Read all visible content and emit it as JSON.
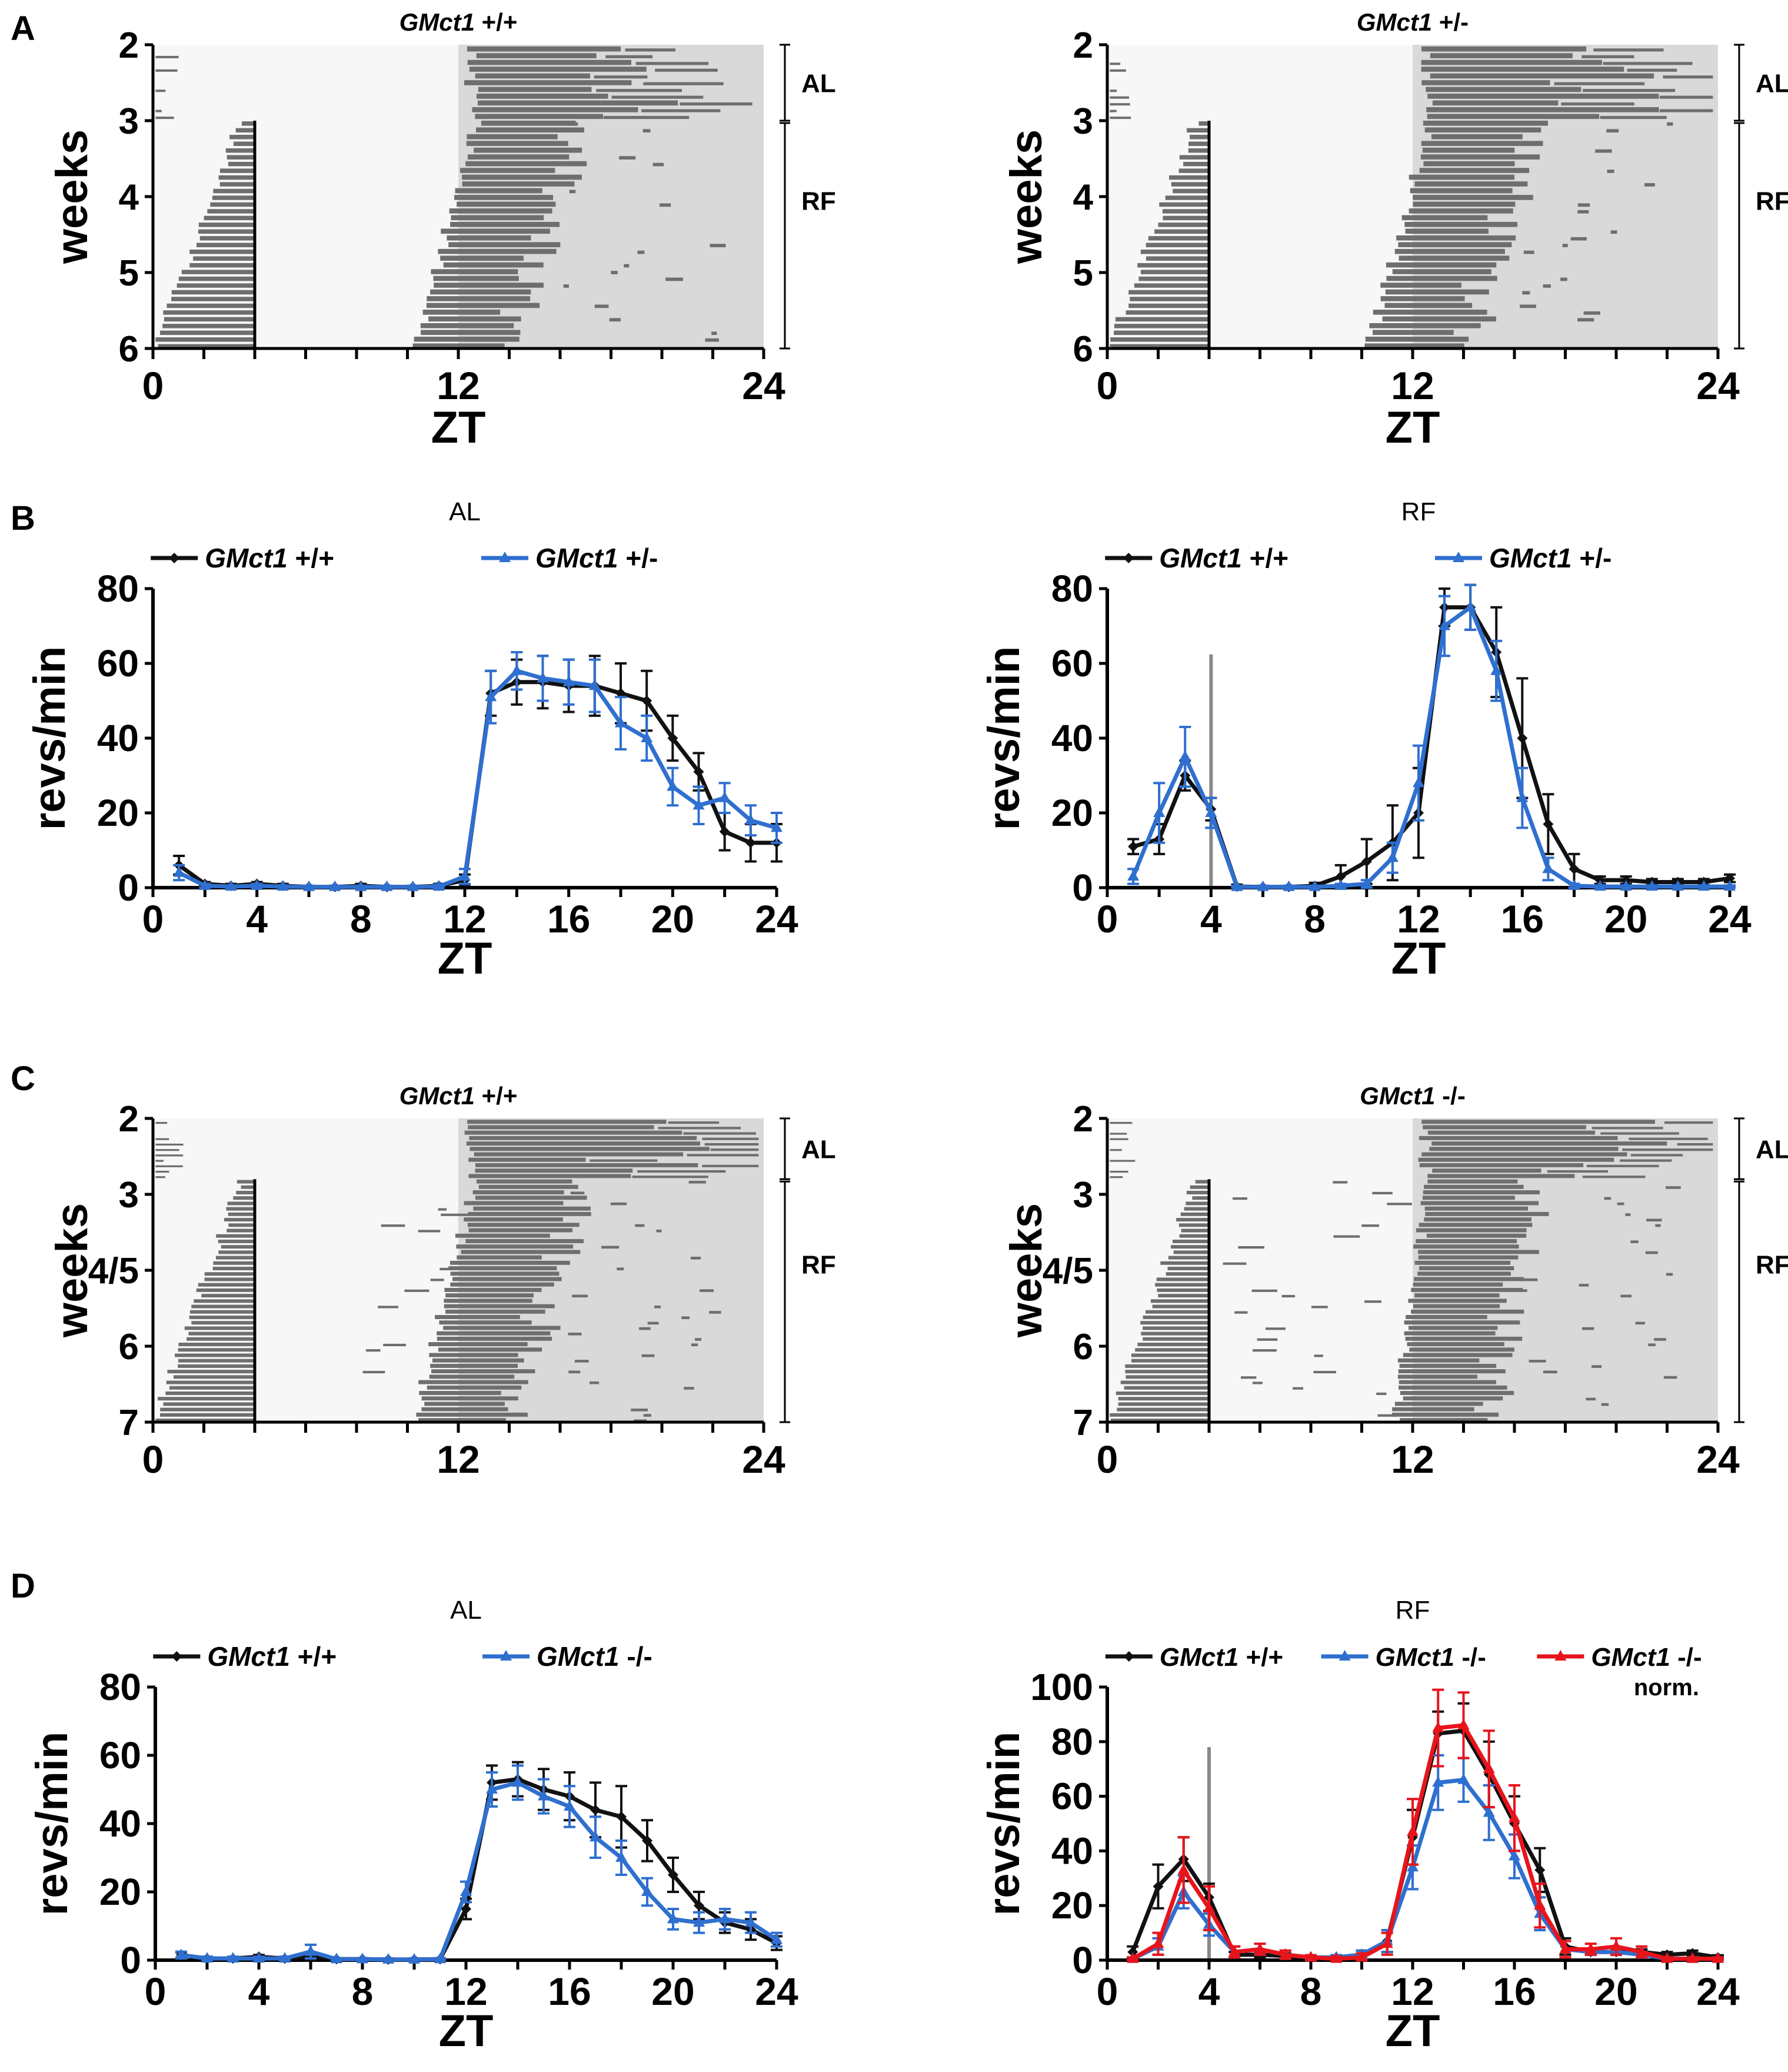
{
  "figure": {
    "panel_letters": [
      "A",
      "B",
      "C",
      "D"
    ]
  },
  "colors": {
    "wt": "#111111",
    "het": "#2f6fcf",
    "ko": "#2f6fcf",
    "norm": "#e8141c",
    "dark_phase": "#d9d9d9",
    "light_phase": "#f7f7f7",
    "activity": "#6e6e6e",
    "feeding_line": "#888888"
  },
  "chart_data": [
    {
      "id": "A-left",
      "panel": "A",
      "type": "actogram",
      "title": "GMct1 +/+",
      "xlabel": "ZT",
      "ylabel": "weeks",
      "xlim": [
        0,
        24
      ],
      "xticks": [
        "0",
        "12",
        "24"
      ],
      "yticks": [
        "2",
        "3",
        "4",
        "5",
        "6"
      ],
      "ylim": [
        2,
        6
      ],
      "phases": [
        {
          "label": "AL",
          "from": 2,
          "to": 3
        },
        {
          "label": "RF",
          "from": 3,
          "to": 6
        }
      ],
      "restricted_feeding_window_zt": [
        0,
        4
      ],
      "dark_phase_zt": [
        12,
        24
      ]
    },
    {
      "id": "A-right",
      "panel": "A",
      "type": "actogram",
      "title": "GMct1 +/-",
      "xlabel": "ZT",
      "ylabel": "weeks",
      "xlim": [
        0,
        24
      ],
      "xticks": [
        "0",
        "12",
        "24"
      ],
      "yticks": [
        "2",
        "3",
        "4",
        "5",
        "6"
      ],
      "ylim": [
        2,
        6
      ],
      "phases": [
        {
          "label": "AL",
          "from": 2,
          "to": 3
        },
        {
          "label": "RF",
          "from": 3,
          "to": 6
        }
      ],
      "restricted_feeding_window_zt": [
        0,
        4
      ],
      "dark_phase_zt": [
        12,
        24
      ]
    },
    {
      "id": "B-left",
      "panel": "B",
      "type": "line",
      "title": "AL",
      "xlabel": "ZT",
      "ylabel": "revs/min",
      "xlim": [
        0,
        24
      ],
      "ylim": [
        0,
        80
      ],
      "xticks": [
        "0",
        "4",
        "8",
        "12",
        "16",
        "20",
        "24"
      ],
      "yticks": [
        "0",
        "20",
        "40",
        "60",
        "80"
      ],
      "legend": "top-center",
      "x": [
        1,
        2,
        3,
        4,
        5,
        6,
        7,
        8,
        9,
        10,
        11,
        12,
        13,
        14,
        15,
        16,
        17,
        18,
        19,
        20,
        21,
        22,
        23,
        24
      ],
      "series": [
        {
          "name": "GMct1 +/+",
          "genotype": "GMct1",
          "suffix": " +/+",
          "marker": "diamond",
          "values": [
            6,
            1,
            0.5,
            1,
            0.5,
            0.2,
            0.2,
            0.5,
            0.2,
            0.2,
            0.5,
            2,
            52,
            55,
            55,
            54,
            54,
            52,
            50,
            40,
            31,
            15,
            12,
            12
          ],
          "errors": [
            2.5,
            0.5,
            0.5,
            0.5,
            0.5,
            0.3,
            0.3,
            0.5,
            0.3,
            0.3,
            0.5,
            1.5,
            6,
            6,
            7,
            7,
            8,
            8,
            8,
            6,
            5,
            5,
            5,
            5
          ]
        },
        {
          "name": "GMct1 +/-",
          "genotype": "GMct1",
          "suffix": " +/-",
          "marker": "triangle",
          "values": [
            4,
            0.5,
            0.3,
            0.5,
            0.3,
            0.2,
            0.2,
            0.2,
            0.2,
            0.2,
            0.3,
            3,
            51,
            58,
            56,
            55,
            54,
            44,
            40,
            27,
            22,
            24,
            18,
            16
          ],
          "errors": [
            2,
            0.5,
            0.3,
            0.5,
            0.3,
            0.3,
            0.3,
            0.3,
            0.3,
            0.3,
            0.5,
            2,
            7,
            5,
            6,
            6,
            7,
            7,
            6,
            5,
            5,
            4,
            4,
            4
          ]
        }
      ]
    },
    {
      "id": "B-right",
      "panel": "B",
      "type": "line",
      "title": "RF",
      "xlabel": "ZT",
      "ylabel": "revs/min",
      "xlim": [
        0,
        24
      ],
      "ylim": [
        0,
        80
      ],
      "xticks": [
        "0",
        "4",
        "8",
        "12",
        "16",
        "20",
        "24"
      ],
      "yticks": [
        "0",
        "20",
        "40",
        "60",
        "80"
      ],
      "legend": "top-center",
      "feeding_end_zt": 4,
      "x": [
        1,
        2,
        3,
        4,
        5,
        6,
        7,
        8,
        9,
        10,
        11,
        12,
        13,
        14,
        15,
        16,
        17,
        18,
        19,
        20,
        21,
        22,
        23,
        24
      ],
      "series": [
        {
          "name": "GMct1 +/+",
          "genotype": "GMct1",
          "suffix": " +/+",
          "marker": "diamond",
          "values": [
            11,
            13,
            30,
            21,
            0.3,
            0.2,
            0.2,
            0.5,
            3,
            7,
            12,
            20,
            75,
            75,
            63,
            40,
            17,
            5,
            2,
            2,
            1.5,
            1.5,
            1.5,
            2.5
          ],
          "errors": [
            2,
            4,
            4,
            3,
            0.5,
            0.3,
            0.3,
            0.8,
            3,
            6,
            10,
            12,
            5,
            6,
            12,
            16,
            8,
            4,
            1,
            1,
            0.8,
            0.8,
            0.8,
            1
          ]
        },
        {
          "name": "GMct1 +/-",
          "genotype": "GMct1",
          "suffix": " +/-",
          "marker": "triangle",
          "values": [
            3,
            20,
            35,
            20,
            0.2,
            0.2,
            0.2,
            0.2,
            0.5,
            1,
            8,
            28,
            70,
            75,
            58,
            24,
            5,
            0.5,
            0.3,
            0.3,
            0.3,
            0.3,
            0.3,
            0.3
          ],
          "errors": [
            2,
            8,
            8,
            4,
            0.3,
            0.3,
            0.3,
            0.3,
            0.5,
            1,
            4,
            10,
            8,
            6,
            8,
            8,
            3,
            0.5,
            0.3,
            0.3,
            0.3,
            0.3,
            0.3,
            0.3
          ]
        }
      ]
    },
    {
      "id": "C-left",
      "panel": "C",
      "type": "actogram",
      "title": "GMct1 +/+",
      "xlabel": "",
      "ylabel": "weeks",
      "xlim": [
        0,
        24
      ],
      "xticks": [
        "0",
        "12",
        "24"
      ],
      "yticks": [
        "2",
        "3",
        "4/5",
        "6",
        "7"
      ],
      "ylim": [
        2,
        7
      ],
      "phases": [
        {
          "label": "AL",
          "from": 2,
          "to": 3
        },
        {
          "label": "RF",
          "from": 3,
          "to": 7
        }
      ],
      "restricted_feeding_window_zt": [
        0,
        4
      ],
      "dark_phase_zt": [
        12,
        24
      ]
    },
    {
      "id": "C-right",
      "panel": "C",
      "type": "actogram",
      "title": "GMct1 -/-",
      "xlabel": "",
      "ylabel": "weeks",
      "xlim": [
        0,
        24
      ],
      "xticks": [
        "0",
        "12",
        "24"
      ],
      "yticks": [
        "2",
        "3",
        "4/5",
        "6",
        "7"
      ],
      "ylim": [
        2,
        7
      ],
      "phases": [
        {
          "label": "AL",
          "from": 2,
          "to": 3
        },
        {
          "label": "RF",
          "from": 3,
          "to": 7
        }
      ],
      "restricted_feeding_window_zt": [
        0,
        4
      ],
      "dark_phase_zt": [
        12,
        24
      ]
    },
    {
      "id": "D-left",
      "panel": "D",
      "type": "line",
      "title": "AL",
      "xlabel": "ZT",
      "ylabel": "revs/min",
      "xlim": [
        0,
        24
      ],
      "ylim": [
        0,
        80
      ],
      "xticks": [
        "0",
        "4",
        "8",
        "12",
        "16",
        "20",
        "24"
      ],
      "yticks": [
        "0",
        "20",
        "40",
        "60",
        "80"
      ],
      "legend": "top-center",
      "x": [
        1,
        2,
        3,
        4,
        5,
        6,
        7,
        8,
        9,
        10,
        11,
        12,
        13,
        14,
        15,
        16,
        17,
        18,
        19,
        20,
        21,
        22,
        23,
        24
      ],
      "series": [
        {
          "name": "GMct1 +/+",
          "genotype": "GMct1",
          "suffix": " +/+",
          "marker": "diamond",
          "values": [
            1.5,
            0.5,
            0.5,
            1,
            0.5,
            1,
            0.3,
            0.3,
            0.2,
            0.2,
            0.3,
            15,
            52,
            53,
            50,
            48,
            44,
            42,
            35,
            25,
            16,
            11,
            9,
            5
          ],
          "errors": [
            0.8,
            0.5,
            0.5,
            0.5,
            0.5,
            1,
            0.3,
            0.3,
            0.3,
            0.3,
            0.3,
            3,
            5,
            5,
            6,
            7,
            8,
            9,
            6,
            5,
            4,
            3,
            3,
            2
          ]
        },
        {
          "name": "GMct1 -/-",
          "genotype": "GMct1",
          "suffix": " -/-",
          "marker": "triangle",
          "values": [
            1.5,
            0.5,
            0.5,
            0.5,
            0.5,
            2.5,
            0.3,
            0.3,
            0.2,
            0.2,
            0.3,
            20,
            50,
            52,
            48,
            45,
            36,
            30,
            20,
            12,
            11,
            12,
            11,
            6
          ],
          "errors": [
            1,
            0.5,
            0.5,
            0.5,
            0.5,
            2,
            0.3,
            0.3,
            0.3,
            0.3,
            0.3,
            3,
            5,
            5,
            5,
            6,
            6,
            5,
            4,
            3,
            3,
            3,
            3,
            2
          ]
        }
      ]
    },
    {
      "id": "D-right",
      "panel": "D",
      "type": "line",
      "title": "RF",
      "xlabel": "ZT",
      "ylabel": "revs/min",
      "xlim": [
        0,
        24
      ],
      "ylim": [
        0,
        100
      ],
      "xticks": [
        "0",
        "4",
        "8",
        "12",
        "16",
        "20",
        "24"
      ],
      "yticks": [
        "0",
        "20",
        "40",
        "60",
        "80",
        "100"
      ],
      "legend": "top-center",
      "feeding_end_zt": 4,
      "x": [
        1,
        2,
        3,
        4,
        5,
        6,
        7,
        8,
        9,
        10,
        11,
        12,
        13,
        14,
        15,
        16,
        17,
        18,
        19,
        20,
        21,
        22,
        23,
        24
      ],
      "series": [
        {
          "name": "GMct1 +/+",
          "genotype": "GMct1",
          "suffix": " +/+",
          "marker": "diamond",
          "values": [
            3,
            27,
            37,
            23,
            2,
            2,
            1.5,
            1,
            1,
            2,
            7,
            45,
            83,
            84,
            68,
            50,
            33,
            5,
            3,
            3,
            3,
            2,
            2.5,
            1
          ],
          "errors": [
            2,
            8,
            8,
            5,
            1,
            1,
            1,
            0.8,
            0.8,
            1.5,
            4,
            10,
            8,
            10,
            12,
            10,
            8,
            3,
            1,
            1,
            1,
            1,
            1,
            0.8
          ]
        },
        {
          "name": "GMct1 -/-",
          "genotype": "GMct1",
          "suffix": " -/-",
          "marker": "triangle",
          "values": [
            0.5,
            5,
            25,
            13,
            3,
            4,
            2,
            1,
            1,
            2,
            7,
            34,
            65,
            66,
            54,
            38,
            17,
            4,
            3,
            3,
            2,
            0.5,
            0.5,
            0.5
          ],
          "errors": [
            0.5,
            3,
            6,
            4,
            2,
            2,
            1.5,
            0.8,
            0.8,
            1.5,
            4,
            8,
            10,
            8,
            10,
            8,
            6,
            3,
            1,
            1,
            1,
            0.5,
            0.5,
            0.5
          ]
        },
        {
          "name": "GMct1 -/- norm.",
          "genotype": "GMct1",
          "suffix": " -/-",
          "suffix2": "norm.",
          "marker": "triangle",
          "values": [
            0.5,
            6,
            33,
            19,
            3,
            4,
            2,
            1,
            0.5,
            1,
            6,
            47,
            85,
            86,
            70,
            52,
            20,
            4,
            4,
            5,
            3,
            0.5,
            0.5,
            0.5
          ],
          "errors": [
            0.5,
            4,
            12,
            8,
            2,
            2,
            1.5,
            0.8,
            0.8,
            1.5,
            4,
            12,
            14,
            12,
            14,
            12,
            8,
            3,
            2,
            3,
            2,
            0.5,
            0.5,
            0.5
          ]
        }
      ]
    }
  ]
}
